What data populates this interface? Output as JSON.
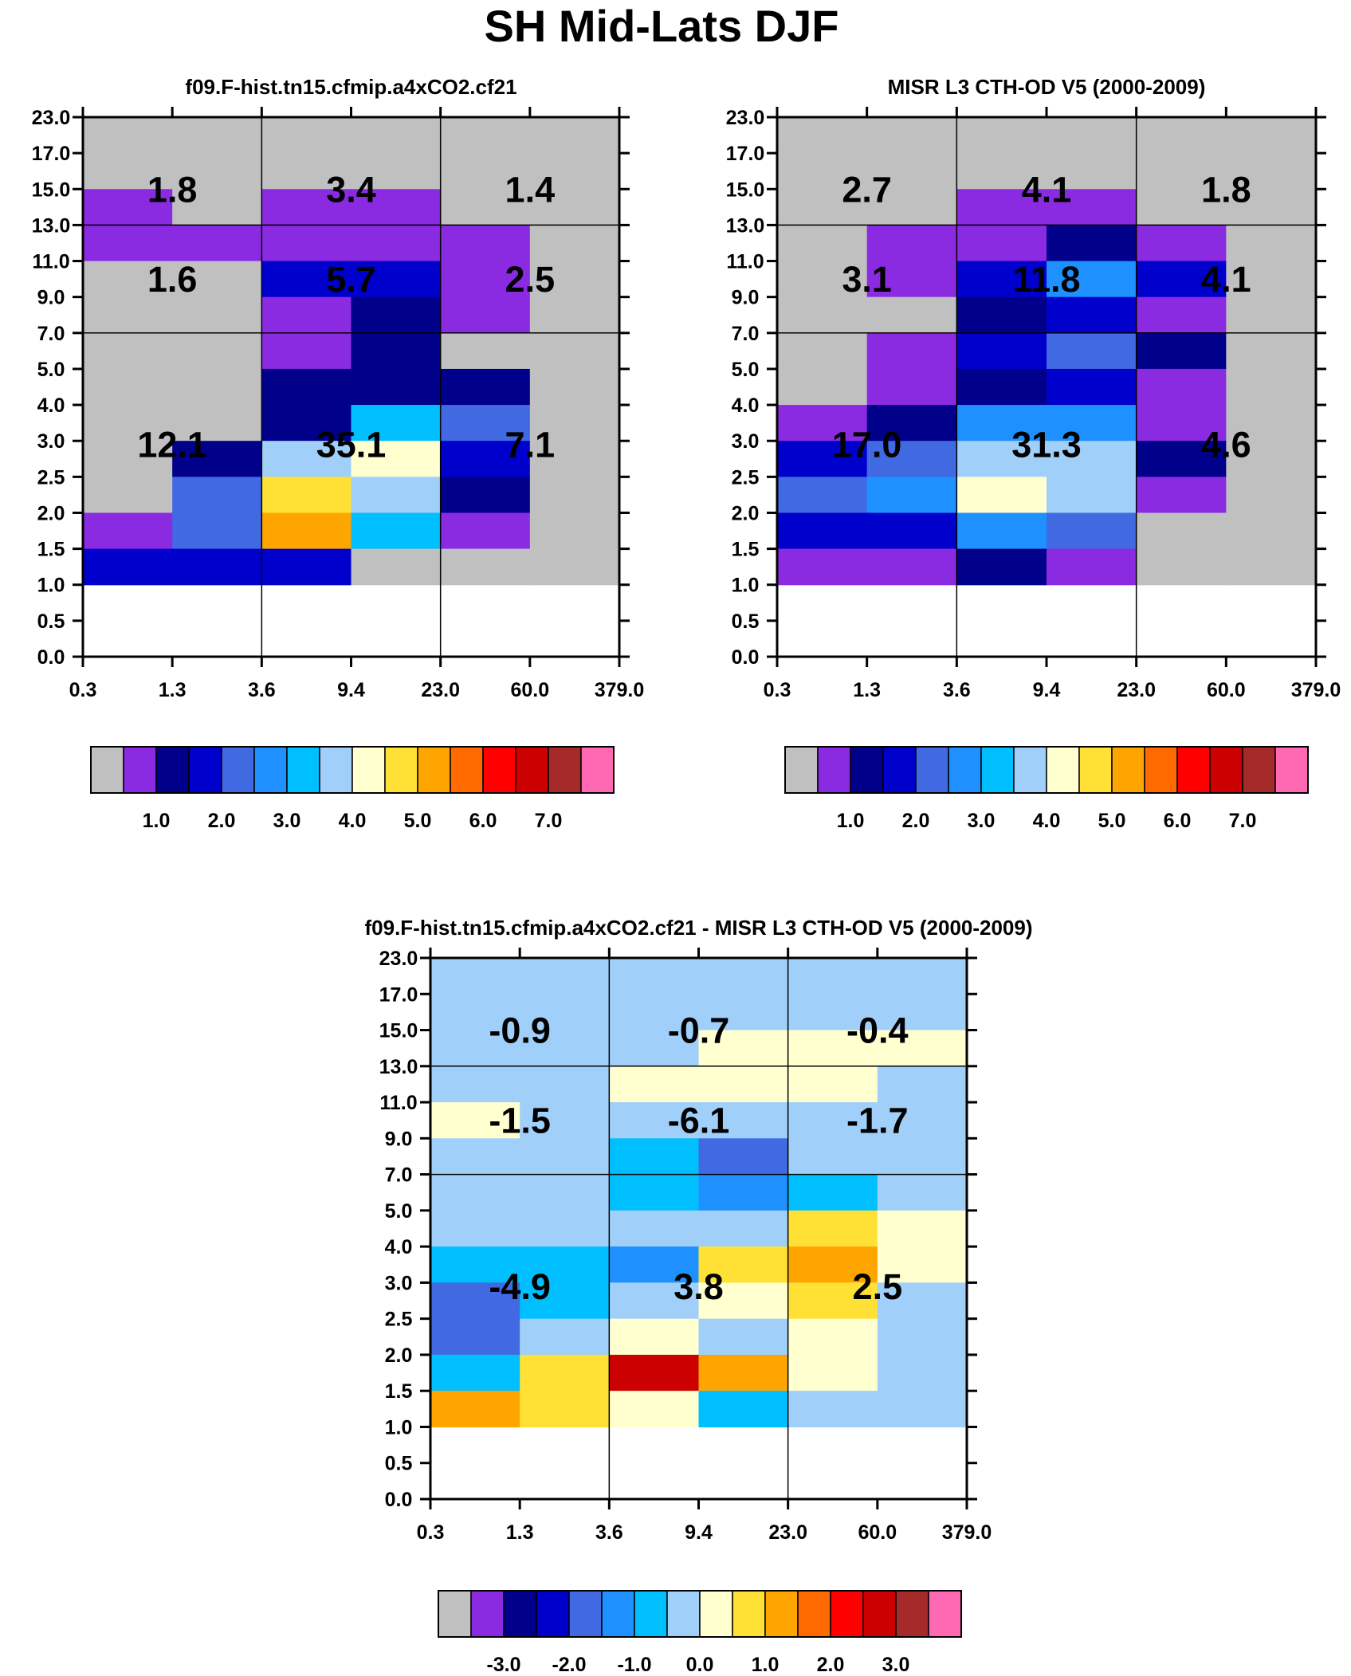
{
  "title": "SH Mid-Lats DJF",
  "chart_data": [
    {
      "type": "heatmap",
      "id": "model",
      "title": "f09.F-hist.tn15.cfmip.a4xCO2.cf21",
      "xlabel": "",
      "ylabel": "",
      "x_ticks": [
        "0.3",
        "1.3",
        "3.6",
        "9.4",
        "23.0",
        "60.0",
        "379.0"
      ],
      "y_ticks": [
        "0.0",
        "0.5",
        "1.0",
        "1.5",
        "2.0",
        "2.5",
        "3.0",
        "4.0",
        "5.0",
        "7.0",
        "9.0",
        "11.0",
        "13.0",
        "15.0",
        "17.0",
        "23.0"
      ],
      "grid_rows": [
        [
          0,
          0,
          0,
          0,
          0,
          0
        ],
        [
          0,
          0,
          0,
          0,
          0,
          0
        ],
        [
          1,
          0,
          1,
          1,
          0,
          0
        ],
        [
          1,
          1,
          1,
          1,
          1,
          0
        ],
        [
          0,
          0,
          3,
          3,
          1,
          0
        ],
        [
          0,
          0,
          1,
          2,
          1,
          0
        ],
        [
          0,
          0,
          1,
          2,
          0,
          0
        ],
        [
          0,
          0,
          2,
          2,
          2,
          0
        ],
        [
          0,
          0,
          2,
          6,
          4,
          0
        ],
        [
          0,
          2,
          7,
          8,
          3,
          0
        ],
        [
          0,
          4,
          9,
          7,
          2,
          0
        ],
        [
          1,
          4,
          10,
          6,
          1,
          0
        ],
        [
          3,
          3,
          3,
          0,
          0,
          0
        ]
      ],
      "annotations": [
        {
          "col": 0,
          "row": 0,
          "value": "1.8"
        },
        {
          "col": 1,
          "row": 0,
          "value": "3.4"
        },
        {
          "col": 2,
          "row": 0,
          "value": "1.4"
        },
        {
          "col": 0,
          "row": 1,
          "value": "1.6"
        },
        {
          "col": 1,
          "row": 1,
          "value": "5.7"
        },
        {
          "col": 2,
          "row": 1,
          "value": "2.5"
        },
        {
          "col": 0,
          "row": 2,
          "value": "12.1"
        },
        {
          "col": 1,
          "row": 2,
          "value": "35.1"
        },
        {
          "col": 2,
          "row": 2,
          "value": "7.1"
        }
      ],
      "colorbar": {
        "colors": [
          "#c0c0c0",
          "#8a2be2",
          "#00008b",
          "#0000cd",
          "#4169e1",
          "#1e90ff",
          "#00bfff",
          "#a0cff9",
          "#ffffd0",
          "#ffe135",
          "#ffa500",
          "#ff6a00",
          "#ff0000",
          "#cc0000",
          "#a52a2a",
          "#ff69b4"
        ],
        "ticks": [
          {
            "after": 1,
            "label": "1.0"
          },
          {
            "after": 3,
            "label": "2.0"
          },
          {
            "after": 5,
            "label": "3.0"
          },
          {
            "after": 7,
            "label": "4.0"
          },
          {
            "after": 9,
            "label": "5.0"
          },
          {
            "after": 11,
            "label": "6.0"
          },
          {
            "after": 13,
            "label": "7.0"
          }
        ]
      }
    },
    {
      "type": "heatmap",
      "id": "obs",
      "title": "MISR L3 CTH-OD V5 (2000-2009)",
      "xlabel": "",
      "ylabel": "",
      "x_ticks": [
        "0.3",
        "1.3",
        "3.6",
        "9.4",
        "23.0",
        "60.0",
        "379.0"
      ],
      "y_ticks": [
        "0.0",
        "0.5",
        "1.0",
        "1.5",
        "2.0",
        "2.5",
        "3.0",
        "4.0",
        "5.0",
        "7.0",
        "9.0",
        "11.0",
        "13.0",
        "15.0",
        "17.0",
        "23.0"
      ],
      "grid_rows": [
        [
          0,
          0,
          0,
          0,
          0,
          0
        ],
        [
          0,
          0,
          0,
          0,
          0,
          0
        ],
        [
          0,
          0,
          1,
          1,
          0,
          0
        ],
        [
          0,
          1,
          1,
          2,
          1,
          0
        ],
        [
          0,
          1,
          3,
          5,
          3,
          0
        ],
        [
          0,
          0,
          2,
          3,
          1,
          0
        ],
        [
          0,
          1,
          3,
          4,
          2,
          0
        ],
        [
          0,
          1,
          2,
          3,
          1,
          0
        ],
        [
          1,
          2,
          5,
          5,
          1,
          0
        ],
        [
          3,
          4,
          7,
          7,
          2,
          0
        ],
        [
          4,
          5,
          8,
          7,
          1,
          0
        ],
        [
          3,
          3,
          5,
          4,
          0,
          0
        ],
        [
          1,
          1,
          2,
          1,
          0,
          0
        ]
      ],
      "annotations": [
        {
          "col": 0,
          "row": 0,
          "value": "2.7"
        },
        {
          "col": 1,
          "row": 0,
          "value": "4.1"
        },
        {
          "col": 2,
          "row": 0,
          "value": "1.8"
        },
        {
          "col": 0,
          "row": 1,
          "value": "3.1"
        },
        {
          "col": 1,
          "row": 1,
          "value": "11.8"
        },
        {
          "col": 2,
          "row": 1,
          "value": "4.1"
        },
        {
          "col": 0,
          "row": 2,
          "value": "17.0"
        },
        {
          "col": 1,
          "row": 2,
          "value": "31.3"
        },
        {
          "col": 2,
          "row": 2,
          "value": "4.6"
        }
      ],
      "colorbar": {
        "colors": [
          "#c0c0c0",
          "#8a2be2",
          "#00008b",
          "#0000cd",
          "#4169e1",
          "#1e90ff",
          "#00bfff",
          "#a0cff9",
          "#ffffd0",
          "#ffe135",
          "#ffa500",
          "#ff6a00",
          "#ff0000",
          "#cc0000",
          "#a52a2a",
          "#ff69b4"
        ],
        "ticks": [
          {
            "after": 1,
            "label": "1.0"
          },
          {
            "after": 3,
            "label": "2.0"
          },
          {
            "after": 5,
            "label": "3.0"
          },
          {
            "after": 7,
            "label": "4.0"
          },
          {
            "after": 9,
            "label": "5.0"
          },
          {
            "after": 11,
            "label": "6.0"
          },
          {
            "after": 13,
            "label": "7.0"
          }
        ]
      }
    },
    {
      "type": "heatmap",
      "id": "diff",
      "title": "f09.F-hist.tn15.cfmip.a4xCO2.cf21 - MISR L3 CTH-OD V5 (2000-2009)",
      "xlabel": "",
      "ylabel": "",
      "x_ticks": [
        "0.3",
        "1.3",
        "3.6",
        "9.4",
        "23.0",
        "60.0",
        "379.0"
      ],
      "y_ticks": [
        "0.0",
        "0.5",
        "1.0",
        "1.5",
        "2.0",
        "2.5",
        "3.0",
        "4.0",
        "5.0",
        "7.0",
        "9.0",
        "11.0",
        "13.0",
        "15.0",
        "17.0",
        "23.0"
      ],
      "grid_rows": [
        [
          7,
          7,
          7,
          7,
          7,
          7
        ],
        [
          7,
          7,
          7,
          7,
          7,
          7
        ],
        [
          7,
          7,
          7,
          8,
          8,
          8
        ],
        [
          7,
          7,
          8,
          8,
          8,
          7
        ],
        [
          8,
          7,
          7,
          7,
          7,
          7
        ],
        [
          7,
          7,
          6,
          4,
          7,
          7
        ],
        [
          7,
          7,
          6,
          5,
          6,
          7
        ],
        [
          7,
          7,
          7,
          7,
          9,
          8
        ],
        [
          6,
          6,
          5,
          9,
          10,
          8
        ],
        [
          4,
          6,
          7,
          8,
          9,
          7
        ],
        [
          4,
          7,
          8,
          7,
          8,
          7
        ],
        [
          6,
          9,
          13,
          10,
          8,
          7
        ],
        [
          10,
          9,
          8,
          6,
          7,
          7
        ]
      ],
      "annotations": [
        {
          "col": 0,
          "row": 0,
          "value": "-0.9"
        },
        {
          "col": 1,
          "row": 0,
          "value": "-0.7"
        },
        {
          "col": 2,
          "row": 0,
          "value": "-0.4"
        },
        {
          "col": 0,
          "row": 1,
          "value": "-1.5"
        },
        {
          "col": 1,
          "row": 1,
          "value": "-6.1"
        },
        {
          "col": 2,
          "row": 1,
          "value": "-1.7"
        },
        {
          "col": 0,
          "row": 2,
          "value": "-4.9"
        },
        {
          "col": 1,
          "row": 2,
          "value": "3.8"
        },
        {
          "col": 2,
          "row": 2,
          "value": "2.5"
        }
      ],
      "colorbar": {
        "colors": [
          "#c0c0c0",
          "#8a2be2",
          "#00008b",
          "#0000cd",
          "#4169e1",
          "#1e90ff",
          "#00bfff",
          "#a0cff9",
          "#ffffd0",
          "#ffe135",
          "#ffa500",
          "#ff6a00",
          "#ff0000",
          "#cc0000",
          "#a52a2a",
          "#ff69b4"
        ],
        "ticks": [
          {
            "after": 1,
            "label": "-3.0"
          },
          {
            "after": 3,
            "label": "-2.0"
          },
          {
            "after": 5,
            "label": "-1.0"
          },
          {
            "after": 7,
            "label": "0.0"
          },
          {
            "after": 9,
            "label": "1.0"
          },
          {
            "after": 11,
            "label": "2.0"
          },
          {
            "after": 13,
            "label": "3.0"
          }
        ]
      }
    }
  ]
}
